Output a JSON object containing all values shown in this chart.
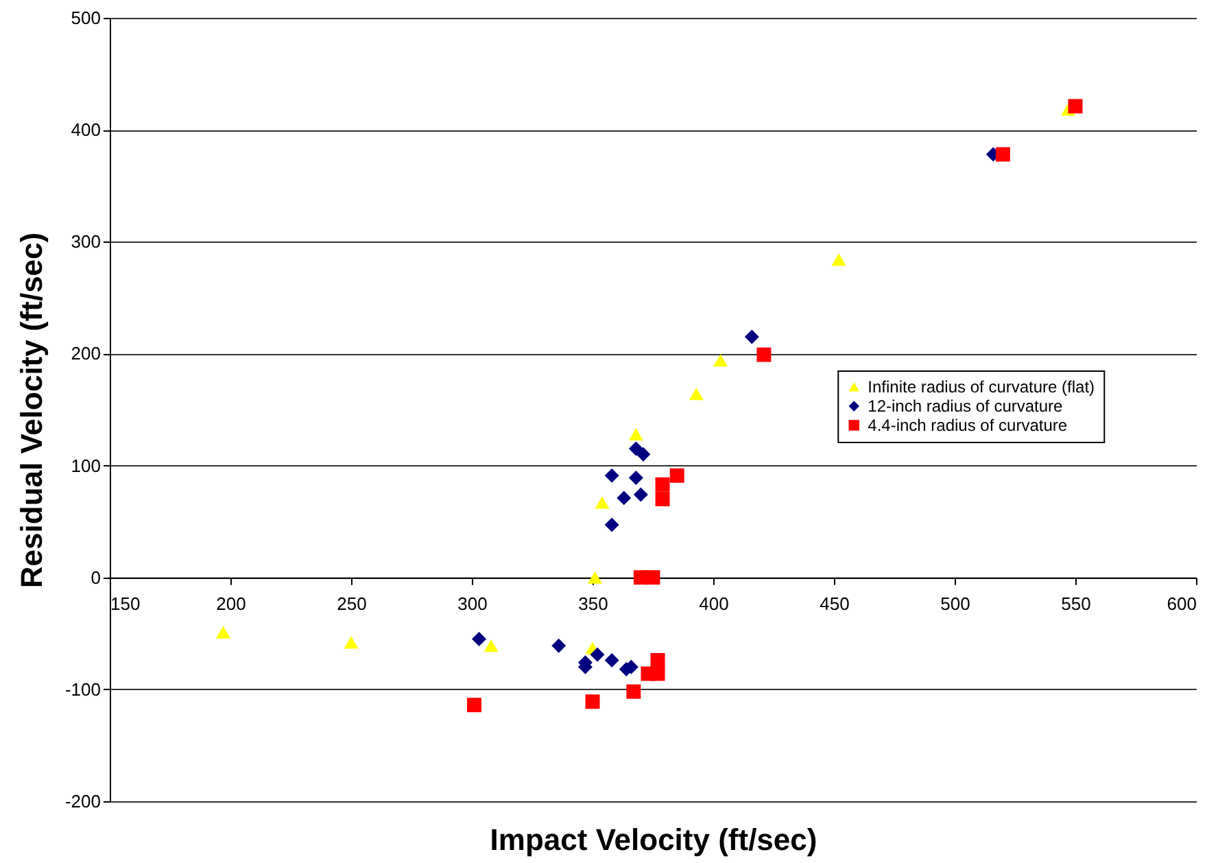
{
  "chart_data": {
    "type": "scatter",
    "xlabel": "Impact Velocity (ft/sec)",
    "ylabel": "Residual Velocity (ft/sec)",
    "xlim": [
      150,
      600
    ],
    "xticks": [
      150,
      200,
      250,
      300,
      350,
      400,
      450,
      500,
      550,
      600
    ],
    "ylim": [
      -200,
      500
    ],
    "yticks": [
      -200,
      -100,
      0,
      100,
      200,
      300,
      400,
      500
    ],
    "grid": "y",
    "legend": "right",
    "series": [
      {
        "name": "Infinite radius of curvature (flat)",
        "color": "#ffff00",
        "marker": "triangle",
        "x": [
          197,
          250,
          308,
          350,
          351,
          354,
          368,
          393,
          403,
          452,
          547
        ],
        "values": [
          -49,
          -58,
          -61,
          -63,
          0,
          67,
          128,
          164,
          194,
          284,
          418
        ]
      },
      {
        "name": "12-inch radius of curvature",
        "color": "#000080",
        "marker": "diamond",
        "x": [
          303,
          336,
          347,
          347,
          352,
          358,
          364,
          366,
          358,
          368,
          363,
          370,
          358,
          368,
          371,
          416,
          516
        ],
        "values": [
          -55,
          -61,
          -76,
          -80,
          -69,
          -74,
          -82,
          -80,
          91,
          89,
          71,
          74,
          47,
          115,
          110,
          215,
          378
        ]
      },
      {
        "name": "4.4-inch radius of curvature",
        "color": "#ff0000",
        "marker": "square",
        "x": [
          301,
          350,
          367,
          373,
          377,
          377,
          370,
          375,
          379,
          379,
          385,
          421,
          520,
          550
        ],
        "values": [
          -114,
          -111,
          -102,
          -86,
          -74,
          -86,
          0,
          0,
          83,
          70,
          91,
          199,
          378,
          421
        ]
      }
    ]
  }
}
